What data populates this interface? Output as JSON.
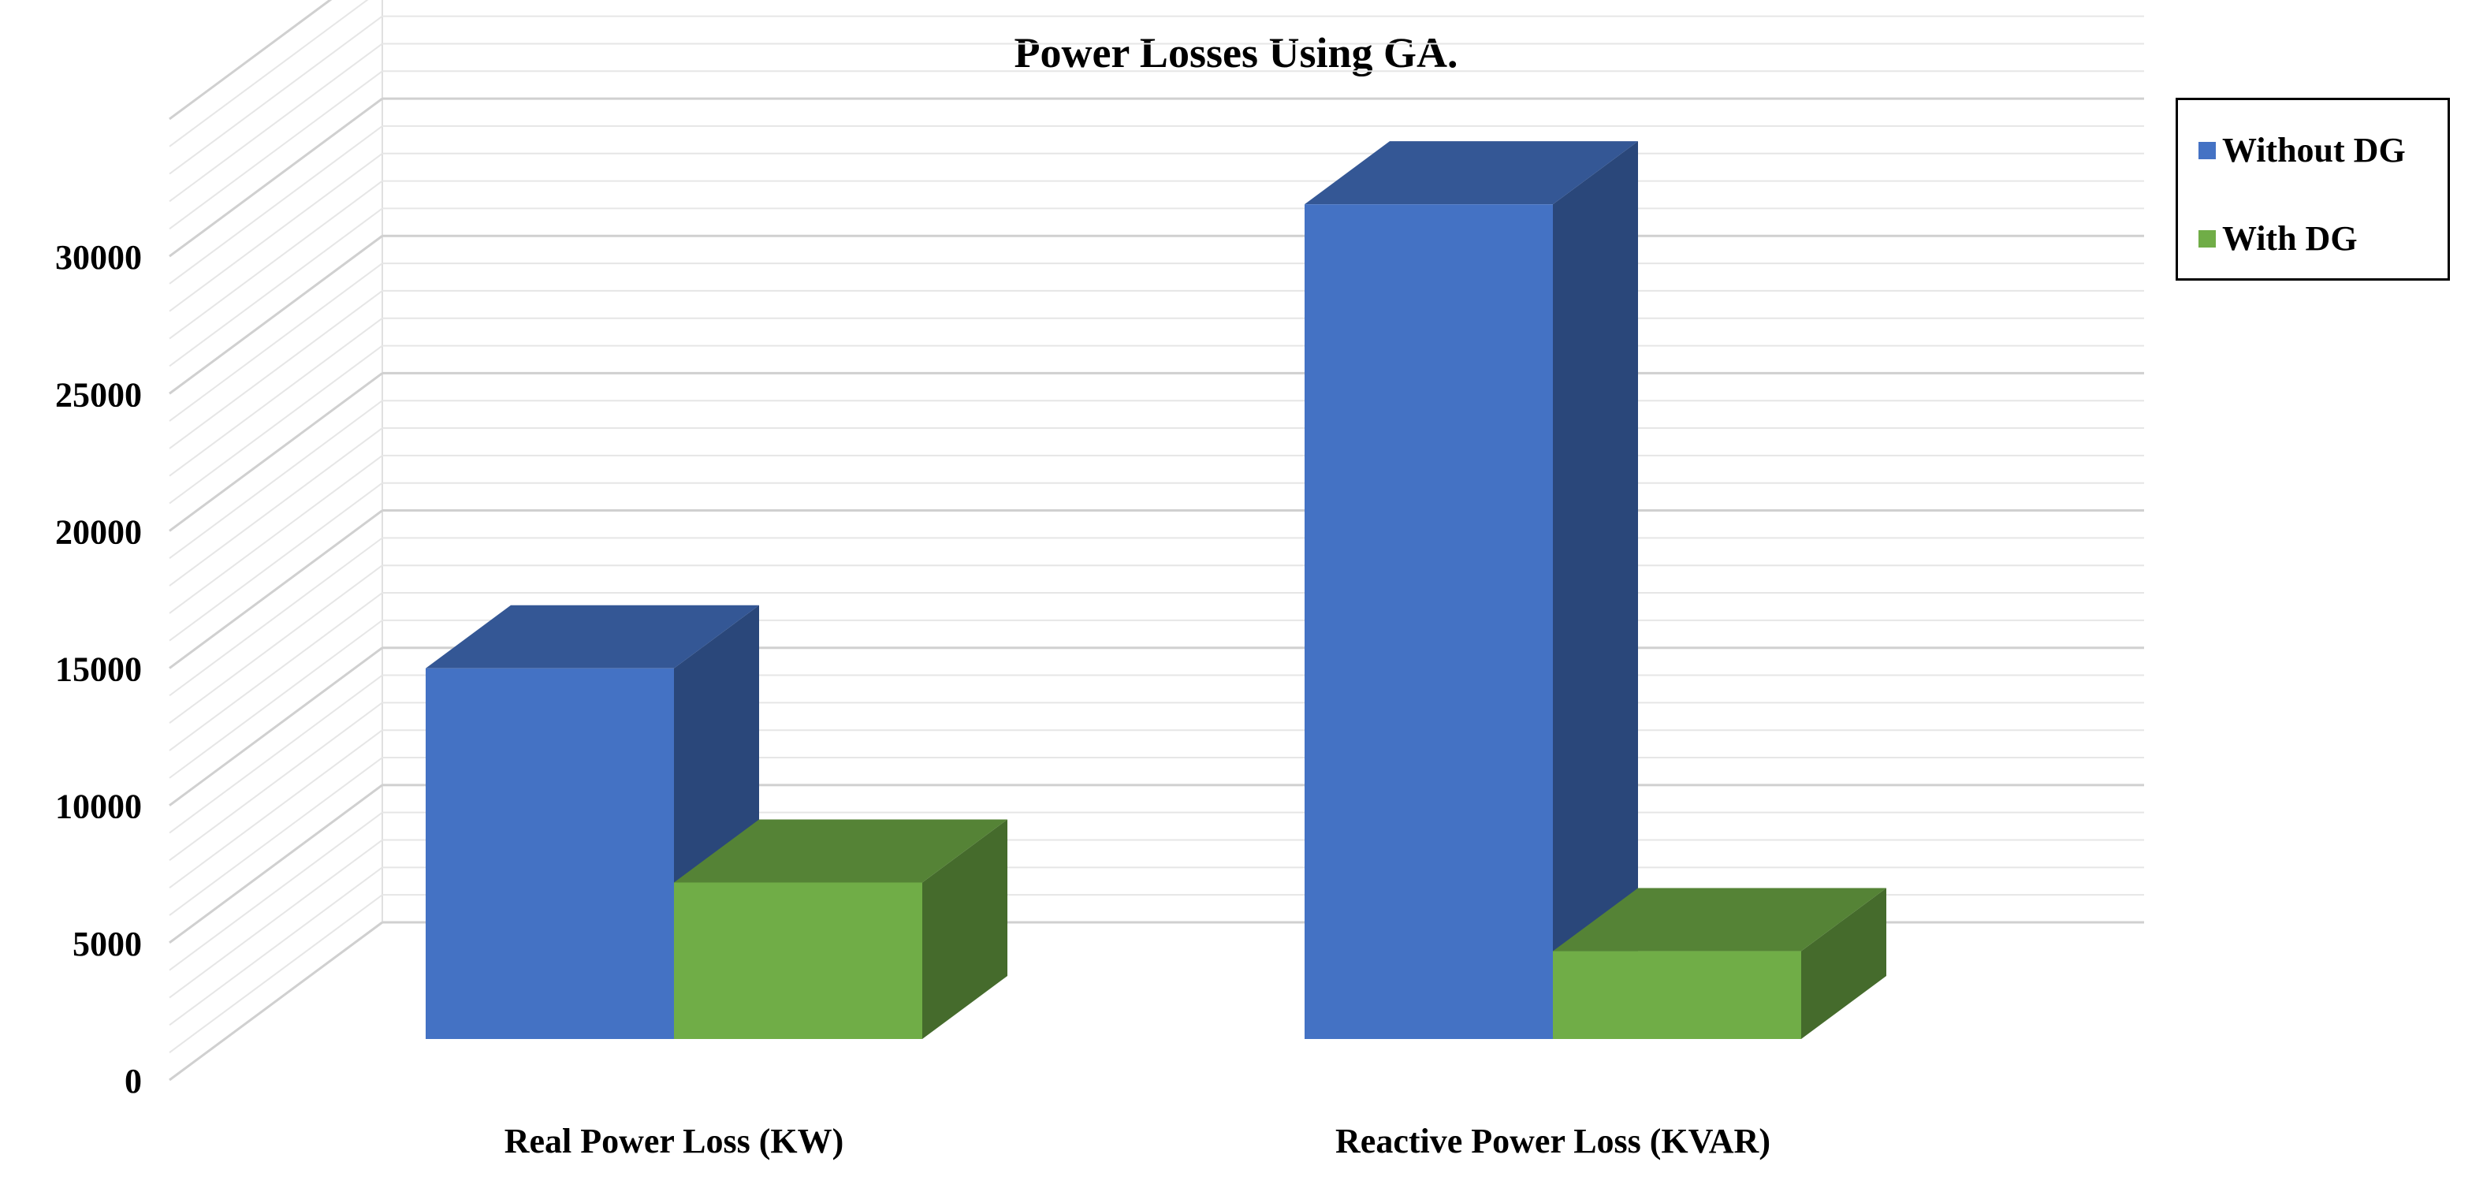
{
  "chart_data": {
    "type": "bar",
    "title": "Power  Losses Using GA.",
    "xlabel": "",
    "ylabel": "",
    "categories": [
      "Real Power Loss (KW)",
      "Reactive Power Loss (KVAR)"
    ],
    "series": [
      {
        "name": "Without DG",
        "values": [
          13500,
          30400
        ],
        "color": "#4472C4"
      },
      {
        "name": "With DG",
        "values": [
          5700,
          3200
        ],
        "color": "#70AD47"
      }
    ],
    "y_ticks": [
      0,
      5000,
      10000,
      15000,
      20000,
      25000,
      30000
    ],
    "ylim": [
      0,
      35000
    ],
    "grid": true,
    "legend_position": "top-right",
    "style": "3d-clustered-column"
  }
}
